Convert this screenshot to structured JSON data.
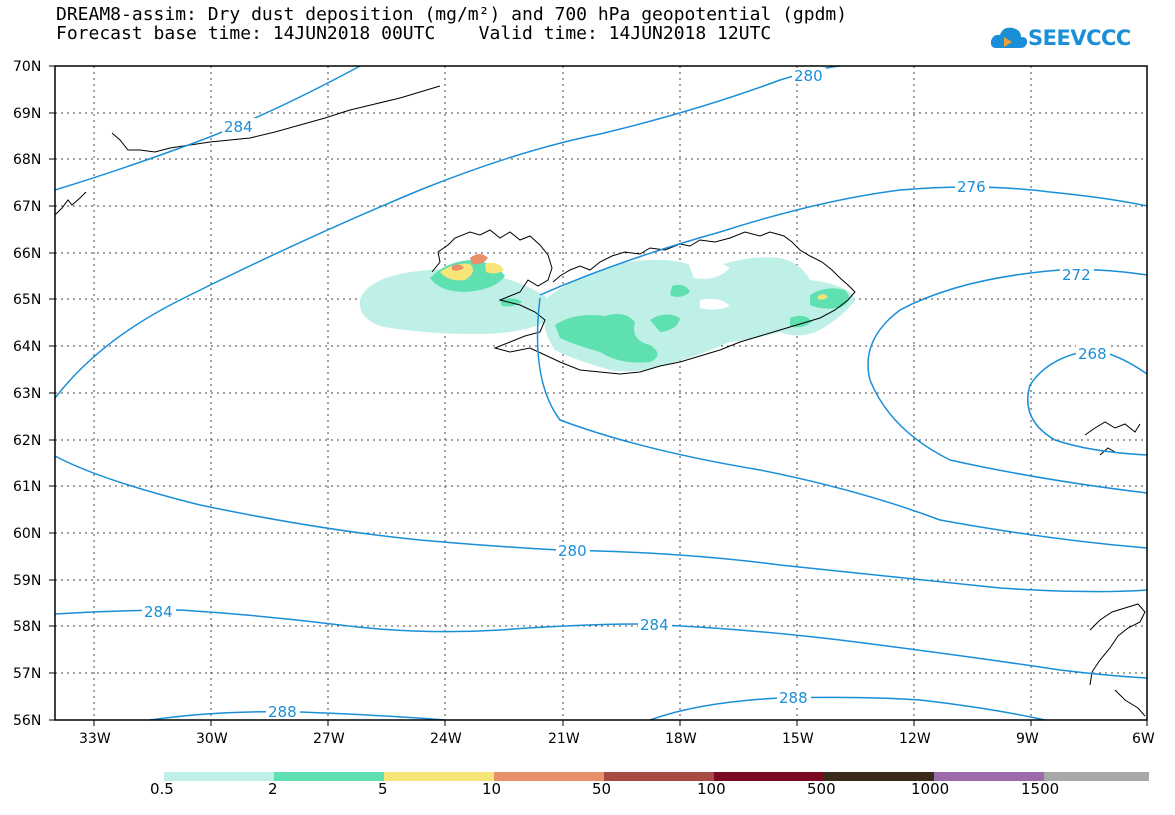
{
  "title_line1": "DREAM8-assim: Dry dust deposition (mg/m²) and 700 hPa geopotential (gpdm)",
  "title_line2": "Forecast base time: 14JUN2018 00UTC    Valid time: 14JUN2018 12UTC",
  "logo_text": "SEEVCCC",
  "lat_labels": [
    "70N",
    "69N",
    "68N",
    "67N",
    "66N",
    "65N",
    "64N",
    "63N",
    "62N",
    "61N",
    "60N",
    "59N",
    "58N",
    "57N",
    "56N"
  ],
  "lon_labels": [
    "33W",
    "30W",
    "27W",
    "24W",
    "21W",
    "18W",
    "15W",
    "12W",
    "9W",
    "6W"
  ],
  "contour_labels": {
    "c284_nw": "284",
    "c280_n": "280",
    "c276": "276",
    "c272": "272",
    "c268": "268",
    "c280_s": "280",
    "c284_sw": "284",
    "c284_s": "284",
    "c288_sw": "288",
    "c288_s": "288"
  },
  "colorbar": {
    "colors": [
      "#bff0e8",
      "#5ee0b0",
      "#f8e57a",
      "#e8906a",
      "#a84a44",
      "#7a0a22",
      "#3a2a1a",
      "#9a6aaa",
      "#a8a8a8"
    ],
    "labels": [
      "0.5",
      "2",
      "5",
      "10",
      "50",
      "100",
      "500",
      "1000",
      "1500"
    ]
  }
}
